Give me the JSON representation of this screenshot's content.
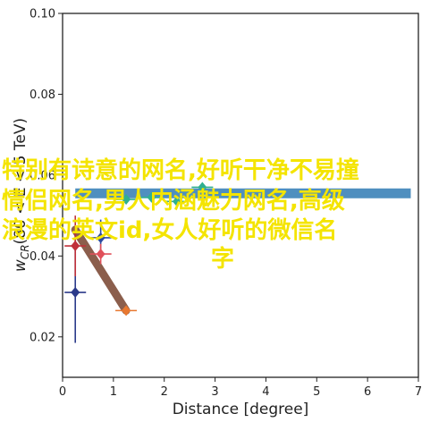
{
  "chart_data": {
    "type": "scatter",
    "xlabel": "Distance [degree]",
    "ylabel_main": "w",
    "ylabel_sub": "CR",
    "ylabel_tail": "(80 < E < 5 TeV)",
    "xlim": [
      0,
      7
    ],
    "ylim": [
      0.01,
      0.1
    ],
    "xticks": [
      "0",
      "1",
      "2",
      "3",
      "4",
      "5",
      "6",
      "7"
    ],
    "yticks": [
      "0.02",
      "0.04",
      "0.06",
      "0.08",
      "0.10"
    ],
    "xtick_values": [
      0,
      1,
      2,
      3,
      4,
      5,
      6,
      7
    ],
    "ytick_values": [
      0.02,
      0.04,
      0.06,
      0.08,
      0.1
    ],
    "band": {
      "y": 0.0555,
      "x_from": 0.25,
      "x_to": 6.85,
      "color": "#4f8fbf"
    },
    "diagonal": {
      "x": [
        0.25,
        1.25
      ],
      "y": [
        0.0465,
        0.0265
      ],
      "color": "#8b5e4c"
    },
    "series": [
      {
        "color": "#2b3a8a",
        "points": [
          {
            "x": 0.25,
            "y": 0.031,
            "yerr": [
              0.0185,
              0.0455
            ]
          }
        ]
      },
      {
        "color": "#c0303a",
        "points": [
          {
            "x": 0.25,
            "y": 0.0425,
            "yerr": [
              0.035,
              0.05
            ]
          }
        ]
      },
      {
        "color": "#2b4aa0",
        "points": [
          {
            "x": 0.75,
            "y": 0.0445,
            "yerr": [
              0.04,
              0.049
            ]
          }
        ]
      },
      {
        "color": "#e0505a",
        "points": [
          {
            "x": 0.75,
            "y": 0.0405,
            "yerr": [
              0.038,
              0.043
            ]
          }
        ]
      },
      {
        "color": "#e87830",
        "points": [
          {
            "x": 1.25,
            "y": 0.0265,
            "yerr": [
              0.0262,
              0.0268
            ]
          }
        ]
      },
      {
        "color": "#30b090",
        "points": [
          {
            "x": 1.25,
            "y": 0.054,
            "yerr": [
              0.053,
              0.055
            ]
          }
        ]
      },
      {
        "color": "#30b090",
        "points": [
          {
            "x": 1.75,
            "y": 0.0545,
            "yerr": [
              0.0535,
              0.0555
            ]
          }
        ]
      },
      {
        "color": "#30b090",
        "points": [
          {
            "x": 2.25,
            "y": 0.0535,
            "yerr": [
              0.0525,
              0.0545
            ]
          }
        ]
      },
      {
        "color": "#30b090",
        "points": [
          {
            "x": 2.75,
            "y": 0.057,
            "yerr": [
              0.056,
              0.058
            ]
          }
        ]
      }
    ],
    "overlay_text": [
      "特别有诗意的网名,好听干净不易撞",
      "情侣网名,男人内涵魅力网名,高级",
      "浪漫的英文id,女人好听的微信名",
      "字"
    ]
  }
}
